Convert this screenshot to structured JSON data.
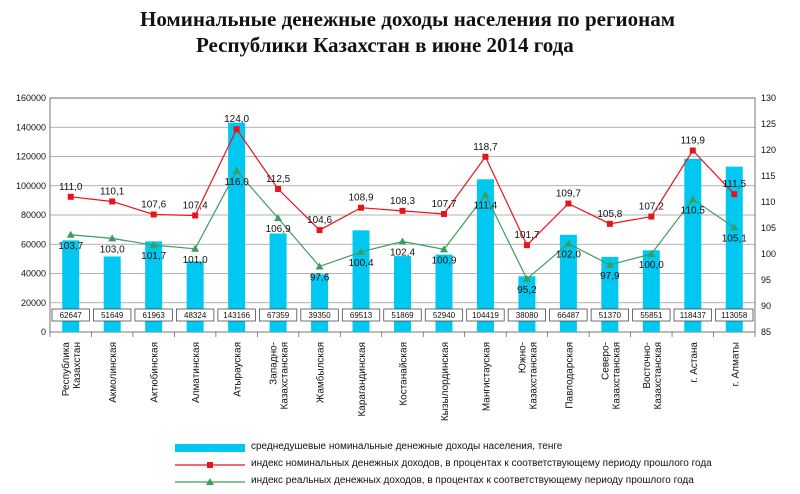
{
  "title": {
    "line1": "Номинальные денежные доходы населения по регионам",
    "line2": "Республики Казахстан в июне 2014 года"
  },
  "colors": {
    "bars": "#00c8f0",
    "nominal": "#e8141c",
    "real": "#3a9e5e"
  },
  "chart_data": {
    "type": "bar",
    "categories": [
      "Республика Казахстан",
      "Акмолинская",
      "Актюбинская",
      "Алматинская",
      "Атырауская",
      "Западно-Казахстанская",
      "Жамбылская",
      "Карагандинская",
      "Костанайская",
      "Кызылординская",
      "Мангистауская",
      "Южно-Казахстанская",
      "Павлодарская",
      "Северо-Казахстанская",
      "Восточно-Казахстанская",
      "г. Астана",
      "г. Алматы"
    ],
    "category_lines": [
      [
        "Республика",
        "Казахстан"
      ],
      [
        "Акмолинская"
      ],
      [
        "Актюбинская"
      ],
      [
        "Алматинская"
      ],
      [
        "Атырауская"
      ],
      [
        "Западно-",
        "Казахстанская"
      ],
      [
        "Жамбылская"
      ],
      [
        "Карагандинская"
      ],
      [
        "Костанайская"
      ],
      [
        "Кызылординская"
      ],
      [
        "Мангистауская"
      ],
      [
        "Южно-",
        "Казахстанская"
      ],
      [
        "Павлодарская"
      ],
      [
        "Северо-",
        "Казахстанская"
      ],
      [
        "Восточно-",
        "Казахстанская"
      ],
      [
        "г. Астана"
      ],
      [
        "г. Алматы"
      ]
    ],
    "series": [
      {
        "name": "среднедушевые номинальные денежные доходы населения, тенге",
        "kind": "bar",
        "axis": "left",
        "values": [
          62647,
          51649,
          61963,
          48324,
          143166,
          67359,
          39350,
          69513,
          51869,
          52940,
          104419,
          38080,
          66487,
          51370,
          55851,
          118437,
          113058
        ],
        "labels": [
          "62647",
          "51649",
          "61963",
          "48324",
          "143166",
          "67359",
          "39350",
          "69513",
          "51869",
          "52940",
          "104419",
          "38080",
          "66487",
          "51370",
          "55851",
          "118437",
          "113058"
        ]
      },
      {
        "name": "индекс номинальных денежных доходов, в процентах к соответствующему периоду прошлого года",
        "kind": "line",
        "axis": "right",
        "values": [
          111.0,
          110.1,
          107.6,
          107.4,
          124.0,
          112.5,
          104.6,
          108.9,
          108.3,
          107.7,
          118.7,
          101.7,
          109.7,
          105.8,
          107.2,
          119.9,
          111.5
        ],
        "labels": [
          "111,0",
          "110,1",
          "107,6",
          "107,4",
          "124,0",
          "112,5",
          "104,6",
          "108,9",
          "108,3",
          "107,7",
          "118,7",
          "101,7",
          "109,7",
          "105,8",
          "107,2",
          "119,9",
          "111,5"
        ]
      },
      {
        "name": "индекс реальных денежных доходов, в процентах к соответствующему периоду прошлого года",
        "kind": "line",
        "axis": "right",
        "values": [
          103.7,
          103.0,
          101.7,
          101.0,
          116.0,
          106.9,
          97.6,
          100.4,
          102.4,
          100.9,
          111.4,
          95.2,
          102.0,
          97.9,
          100.0,
          110.5,
          105.1
        ],
        "labels": [
          "103,7",
          "103,0",
          "101,7",
          "101,0",
          "116,0",
          "106,9",
          "97,6",
          "100,4",
          "102,4",
          "100,9",
          "111,4",
          "95,2",
          "102,0",
          "97,9",
          "100,0",
          "110,5",
          "105,1"
        ]
      }
    ],
    "y_left": {
      "min": 0,
      "max": 160000,
      "step": 20000,
      "ticks": [
        "0",
        "20000",
        "40000",
        "60000",
        "80000",
        "100000",
        "120000",
        "140000",
        "160000"
      ]
    },
    "y_right": {
      "min": 85,
      "max": 130,
      "step": 5,
      "ticks": [
        "85",
        "90",
        "95",
        "100",
        "105",
        "110",
        "115",
        "120",
        "125",
        "130"
      ]
    },
    "grid": true,
    "legend_position": "bottom"
  }
}
